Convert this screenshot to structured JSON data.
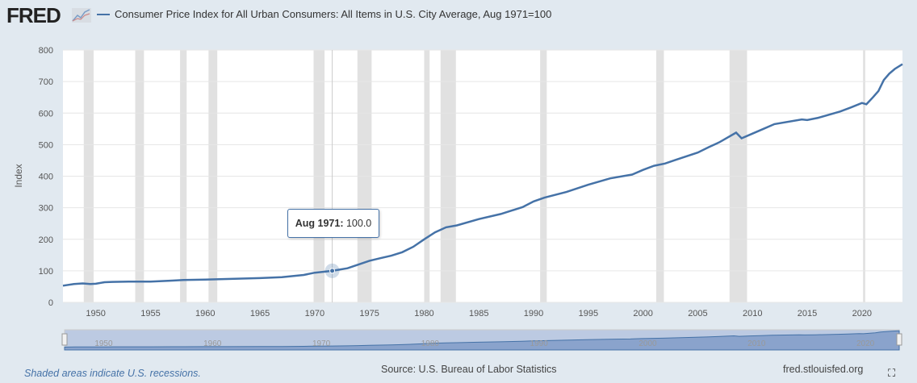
{
  "brand": "FRED",
  "footer": {
    "recession_note": "Shaded areas indicate U.S. recessions.",
    "source": "Source: U.S. Bureau of Labor Statistics",
    "site": "fred.stlouisfed.org"
  },
  "tooltip": {
    "date": "Aug 1971:",
    "value": "100.0"
  },
  "chart_data": {
    "type": "line",
    "title": "",
    "xlabel": "",
    "ylabel": "Index",
    "xlim": [
      1947.0,
      2023.7
    ],
    "ylim": [
      0,
      800
    ],
    "yticks": [
      0,
      100,
      200,
      300,
      400,
      500,
      600,
      700,
      800
    ],
    "xticks": [
      1950,
      1955,
      1960,
      1965,
      1970,
      1975,
      1980,
      1985,
      1990,
      1995,
      2000,
      2005,
      2010,
      2015,
      2020
    ],
    "navigator_ticks": [
      1950,
      1960,
      1970,
      1980,
      1990,
      2000,
      2010,
      2020
    ],
    "series": [
      {
        "name": "Consumer Price Index for All Urban Consumers: All Items in U.S. City Average, Aug 1971=100",
        "color": "#4572a7",
        "x": [
          1947,
          1948,
          1948.8,
          1949.5,
          1950,
          1950.8,
          1951.5,
          1953,
          1955,
          1957,
          1958,
          1960,
          1962,
          1965,
          1967,
          1969,
          1970,
          1971.6,
          1973,
          1974,
          1975,
          1976,
          1977,
          1978,
          1979,
          1980,
          1981,
          1982,
          1983,
          1985,
          1987,
          1989,
          1990,
          1991,
          1993,
          1995,
          1997,
          1999,
          2000,
          2001,
          2002,
          2003,
          2005,
          2006,
          2007,
          2008.5,
          2009,
          2010,
          2011,
          2012,
          2014.5,
          2015,
          2016,
          2018,
          2019,
          2020,
          2020.4,
          2021,
          2021.5,
          2022,
          2022.5,
          2023,
          2023.7
        ],
        "y": [
          53,
          58,
          60,
          58,
          59,
          64,
          65,
          66,
          66,
          69,
          71,
          72,
          74,
          77,
          80,
          87,
          94,
          100,
          108,
          120,
          132,
          140,
          148,
          159,
          176,
          200,
          222,
          238,
          244,
          264,
          280,
          302,
          320,
          332,
          350,
          373,
          393,
          405,
          420,
          433,
          440,
          452,
          475,
          492,
          508,
          538,
          520,
          535,
          550,
          565,
          580,
          578,
          585,
          605,
          618,
          632,
          628,
          650,
          670,
          705,
          725,
          740,
          755
        ]
      }
    ],
    "recessions": [
      [
        1948.9,
        1949.8
      ],
      [
        1953.6,
        1954.4
      ],
      [
        1957.7,
        1958.3
      ],
      [
        1960.3,
        1961.1
      ],
      [
        1969.9,
        1970.9
      ],
      [
        1973.9,
        1975.2
      ],
      [
        1980.0,
        1980.5
      ],
      [
        1981.5,
        1982.9
      ],
      [
        1990.6,
        1991.2
      ],
      [
        2001.2,
        2001.9
      ],
      [
        2007.9,
        2009.5
      ],
      [
        2020.1,
        2020.3
      ]
    ],
    "highlight": {
      "x": 1971.6,
      "y": 100
    }
  }
}
